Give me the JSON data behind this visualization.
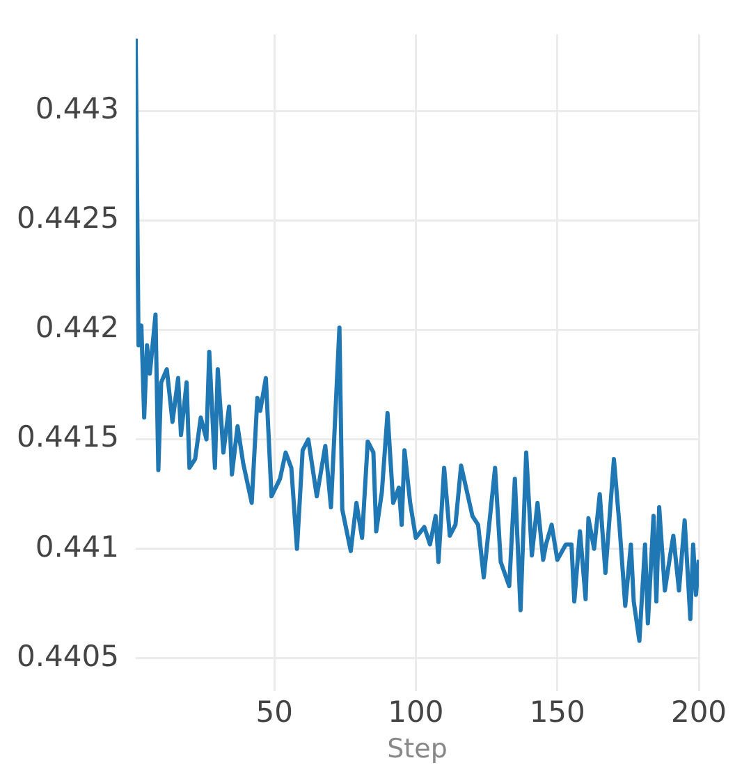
{
  "chart_data": {
    "type": "line",
    "xlabel": "Step",
    "grid": true,
    "legend": false,
    "marker": "none",
    "line_style": "solid",
    "xlim": [
      1,
      200
    ],
    "ylim": [
      0.44035,
      0.44335
    ],
    "xticks": [
      50,
      100,
      150,
      200
    ],
    "yticks": [
      0.4405,
      0.441,
      0.4415,
      0.442,
      0.4425,
      0.443
    ],
    "series": [
      {
        "color": "#1f77b4",
        "x": [
          1,
          2,
          3,
          4,
          5,
          6,
          8,
          9,
          10,
          12,
          14,
          16,
          17,
          19,
          20,
          22,
          24,
          26,
          27,
          29,
          30,
          32,
          34,
          35,
          37,
          39,
          42,
          44,
          45,
          47,
          49,
          52,
          54,
          56,
          58,
          60,
          62,
          65,
          68,
          70,
          73,
          74,
          77,
          79,
          81,
          83,
          85,
          86,
          88,
          90,
          92,
          94,
          95,
          96,
          98,
          100,
          103,
          105,
          107,
          108,
          110,
          112,
          114,
          116,
          120,
          122,
          124,
          128,
          130,
          133,
          135,
          137,
          139,
          141,
          143,
          145,
          146,
          148,
          150,
          153,
          155,
          156,
          158,
          160,
          161,
          163,
          165,
          167,
          170,
          172,
          174,
          176,
          177,
          179,
          181,
          182,
          184,
          185,
          186,
          188,
          190,
          191,
          193,
          195,
          197,
          198,
          199,
          200
        ],
        "values": [
          0.44333,
          0.44193,
          0.44202,
          0.4416,
          0.44193,
          0.4418,
          0.44207,
          0.44136,
          0.44176,
          0.44182,
          0.44158,
          0.44178,
          0.44152,
          0.44176,
          0.44137,
          0.44141,
          0.4416,
          0.4415,
          0.4419,
          0.44137,
          0.44182,
          0.44144,
          0.44165,
          0.44134,
          0.44156,
          0.44139,
          0.44121,
          0.44169,
          0.44163,
          0.44178,
          0.44124,
          0.44132,
          0.44144,
          0.44137,
          0.441,
          0.44145,
          0.4415,
          0.44124,
          0.44147,
          0.44119,
          0.44201,
          0.44118,
          0.44099,
          0.44121,
          0.44105,
          0.44149,
          0.44144,
          0.44108,
          0.44126,
          0.44162,
          0.44121,
          0.44128,
          0.44111,
          0.44145,
          0.44121,
          0.44105,
          0.4411,
          0.44102,
          0.44115,
          0.44094,
          0.44137,
          0.44106,
          0.44111,
          0.44138,
          0.44115,
          0.44111,
          0.44087,
          0.44137,
          0.44094,
          0.44083,
          0.44132,
          0.44072,
          0.44144,
          0.44097,
          0.44121,
          0.44095,
          0.44102,
          0.44111,
          0.44095,
          0.44102,
          0.44102,
          0.44076,
          0.44108,
          0.44077,
          0.44114,
          0.441,
          0.44125,
          0.44089,
          0.44141,
          0.4411,
          0.44074,
          0.44102,
          0.44076,
          0.44058,
          0.44102,
          0.44066,
          0.44115,
          0.44076,
          0.44119,
          0.44081,
          0.44098,
          0.44106,
          0.44081,
          0.44113,
          0.44068,
          0.44102,
          0.44079,
          0.44095
        ]
      }
    ]
  }
}
